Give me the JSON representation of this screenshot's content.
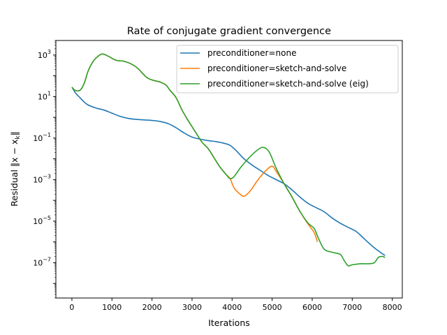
{
  "chart_data": {
    "type": "line",
    "title": "Rate of conjugate gradient convergence",
    "xlabel": "Iterations",
    "ylabel": "Residual ‖x − x",
    "ylabel_sub": "k",
    "ylabel_end": "‖",
    "yscale": "log",
    "xlim": [
      -400,
      8250
    ],
    "ylim_log10": [
      -8.7,
      3.7
    ],
    "grid": false,
    "legend_position": "top-right",
    "x_ticks": [
      0,
      1000,
      2000,
      3000,
      4000,
      5000,
      6000,
      7000,
      8000
    ],
    "x_tick_labels": [
      "0",
      "1000",
      "2000",
      "3000",
      "4000",
      "5000",
      "6000",
      "7000",
      "8000"
    ],
    "y_ticks": [
      {
        "exp": 3,
        "base": "10",
        "sup": "3"
      },
      {
        "exp": 1,
        "base": "10",
        "sup": "1"
      },
      {
        "exp": -1,
        "base": "10",
        "sup": "−1"
      },
      {
        "exp": -3,
        "base": "10",
        "sup": "−3"
      },
      {
        "exp": -5,
        "base": "10",
        "sup": "−5"
      },
      {
        "exp": -7,
        "base": "10",
        "sup": "−7"
      }
    ],
    "series": [
      {
        "name": "preconditioner=none",
        "color": "#1f77b4",
        "points": [
          [
            0,
            1.45
          ],
          [
            100,
            1.15
          ],
          [
            200,
            0.95
          ],
          [
            300,
            0.75
          ],
          [
            400,
            0.6
          ],
          [
            600,
            0.45
          ],
          [
            800,
            0.35
          ],
          [
            1000,
            0.2
          ],
          [
            1200,
            0.05
          ],
          [
            1400,
            -0.05
          ],
          [
            1600,
            -0.1
          ],
          [
            2000,
            -0.15
          ],
          [
            2200,
            -0.2
          ],
          [
            2400,
            -0.3
          ],
          [
            2600,
            -0.5
          ],
          [
            2800,
            -0.75
          ],
          [
            3000,
            -0.95
          ],
          [
            3200,
            -1.05
          ],
          [
            3400,
            -1.12
          ],
          [
            3600,
            -1.17
          ],
          [
            3800,
            -1.25
          ],
          [
            3950,
            -1.35
          ],
          [
            4100,
            -1.6
          ],
          [
            4300,
            -2.0
          ],
          [
            4500,
            -2.3
          ],
          [
            4700,
            -2.55
          ],
          [
            4900,
            -2.8
          ],
          [
            5100,
            -3.0
          ],
          [
            5300,
            -3.2
          ],
          [
            5500,
            -3.5
          ],
          [
            5700,
            -3.85
          ],
          [
            5900,
            -4.15
          ],
          [
            6100,
            -4.35
          ],
          [
            6300,
            -4.55
          ],
          [
            6500,
            -4.85
          ],
          [
            6700,
            -5.1
          ],
          [
            6900,
            -5.3
          ],
          [
            7100,
            -5.5
          ],
          [
            7300,
            -5.85
          ],
          [
            7500,
            -6.2
          ],
          [
            7700,
            -6.5
          ],
          [
            7820,
            -6.65
          ]
        ]
      },
      {
        "name": "preconditioner=sketch-and-solve",
        "color": "#ff7f0e",
        "points": [
          [
            0,
            1.45
          ],
          [
            80,
            1.3
          ],
          [
            200,
            1.3
          ],
          [
            300,
            1.6
          ],
          [
            400,
            2.2
          ],
          [
            500,
            2.6
          ],
          [
            600,
            2.85
          ],
          [
            750,
            3.05
          ],
          [
            900,
            2.95
          ],
          [
            1100,
            2.75
          ],
          [
            1300,
            2.7
          ],
          [
            1500,
            2.55
          ],
          [
            1650,
            2.35
          ],
          [
            1850,
            1.95
          ],
          [
            2000,
            1.8
          ],
          [
            2200,
            1.7
          ],
          [
            2350,
            1.55
          ],
          [
            2450,
            1.3
          ],
          [
            2600,
            0.95
          ],
          [
            2750,
            0.35
          ],
          [
            2900,
            -0.15
          ],
          [
            3000,
            -0.45
          ],
          [
            3100,
            -0.75
          ],
          [
            3250,
            -1.2
          ],
          [
            3400,
            -1.5
          ],
          [
            3550,
            -1.95
          ],
          [
            3700,
            -2.4
          ],
          [
            3850,
            -2.75
          ],
          [
            3950,
            -2.95
          ],
          [
            4050,
            -3.4
          ],
          [
            4200,
            -3.7
          ],
          [
            4300,
            -3.8
          ],
          [
            4450,
            -3.55
          ],
          [
            4650,
            -3.0
          ],
          [
            4850,
            -2.55
          ],
          [
            5000,
            -2.35
          ],
          [
            5100,
            -2.6
          ],
          [
            5300,
            -3.2
          ],
          [
            5500,
            -3.85
          ],
          [
            5700,
            -4.55
          ],
          [
            5900,
            -5.15
          ],
          [
            6050,
            -5.55
          ],
          [
            6130,
            -6.0
          ]
        ]
      },
      {
        "name": "preconditioner=sketch-and-solve (eig)",
        "color": "#2ca02c",
        "points": [
          [
            0,
            1.45
          ],
          [
            80,
            1.3
          ],
          [
            200,
            1.3
          ],
          [
            300,
            1.6
          ],
          [
            400,
            2.2
          ],
          [
            500,
            2.6
          ],
          [
            600,
            2.85
          ],
          [
            750,
            3.05
          ],
          [
            900,
            2.95
          ],
          [
            1100,
            2.75
          ],
          [
            1300,
            2.7
          ],
          [
            1500,
            2.55
          ],
          [
            1650,
            2.35
          ],
          [
            1850,
            1.95
          ],
          [
            2000,
            1.8
          ],
          [
            2200,
            1.7
          ],
          [
            2350,
            1.55
          ],
          [
            2450,
            1.3
          ],
          [
            2600,
            0.95
          ],
          [
            2750,
            0.35
          ],
          [
            2900,
            -0.15
          ],
          [
            3000,
            -0.45
          ],
          [
            3100,
            -0.75
          ],
          [
            3250,
            -1.2
          ],
          [
            3400,
            -1.5
          ],
          [
            3550,
            -1.95
          ],
          [
            3700,
            -2.4
          ],
          [
            3850,
            -2.75
          ],
          [
            3950,
            -2.95
          ],
          [
            4050,
            -2.85
          ],
          [
            4200,
            -2.45
          ],
          [
            4350,
            -2.1
          ],
          [
            4500,
            -1.8
          ],
          [
            4650,
            -1.55
          ],
          [
            4750,
            -1.45
          ],
          [
            4850,
            -1.5
          ],
          [
            4950,
            -1.75
          ],
          [
            5100,
            -2.45
          ],
          [
            5300,
            -3.2
          ],
          [
            5500,
            -3.85
          ],
          [
            5700,
            -4.55
          ],
          [
            5900,
            -5.1
          ],
          [
            6050,
            -5.35
          ],
          [
            6150,
            -5.8
          ],
          [
            6300,
            -6.35
          ],
          [
            6500,
            -6.5
          ],
          [
            6700,
            -6.6
          ],
          [
            6800,
            -6.9
          ],
          [
            6900,
            -7.15
          ],
          [
            7000,
            -7.1
          ],
          [
            7200,
            -7.05
          ],
          [
            7400,
            -7.05
          ],
          [
            7550,
            -7.0
          ],
          [
            7650,
            -6.75
          ],
          [
            7750,
            -6.7
          ],
          [
            7820,
            -6.75
          ]
        ]
      }
    ]
  }
}
